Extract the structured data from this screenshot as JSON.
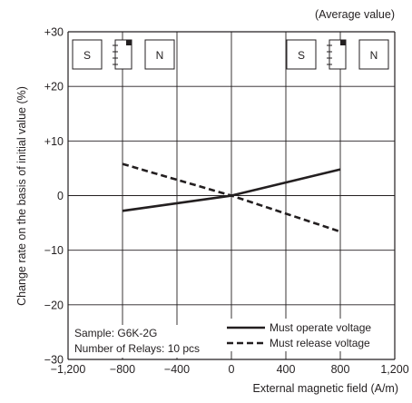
{
  "chart_data": {
    "type": "line",
    "title": "",
    "subtitle": "(Average value)",
    "xlabel": "External magnetic field (A/m)",
    "ylabel": "Change rate on the basis of initial value (%)",
    "xlim": [
      -1200,
      1200
    ],
    "ylim": [
      -30,
      30
    ],
    "x_ticks": [
      -1200,
      -800,
      -400,
      0,
      400,
      800,
      1200
    ],
    "x_tick_labels": [
      "−1,200",
      "−800",
      "−400",
      "0",
      "400",
      "800",
      "1,200"
    ],
    "y_ticks": [
      -30,
      -20,
      -10,
      0,
      10,
      20,
      30
    ],
    "y_tick_labels": [
      "−30",
      "−20",
      "−10",
      "0",
      "+10",
      "+20",
      "+30"
    ],
    "grid": true,
    "legend_position": "bottom-right",
    "series": [
      {
        "name": "Must operate voltage",
        "style": "solid",
        "color": "#231f20",
        "x": [
          -800,
          0,
          800
        ],
        "y": [
          -2.8,
          0,
          4.8
        ]
      },
      {
        "name": "Must release voltage",
        "style": "dashed",
        "color": "#231f20",
        "x": [
          -800,
          0,
          800
        ],
        "y": [
          5.8,
          0,
          -6.6
        ]
      }
    ],
    "annotations": {
      "sample": "Sample: G6K-2G",
      "relays": "Number of Relays: 10 pcs"
    },
    "magnet_diagrams": {
      "left": {
        "pole_left": "S",
        "pole_right": "N"
      },
      "right": {
        "pole_left": "S",
        "pole_right": "N"
      }
    }
  }
}
